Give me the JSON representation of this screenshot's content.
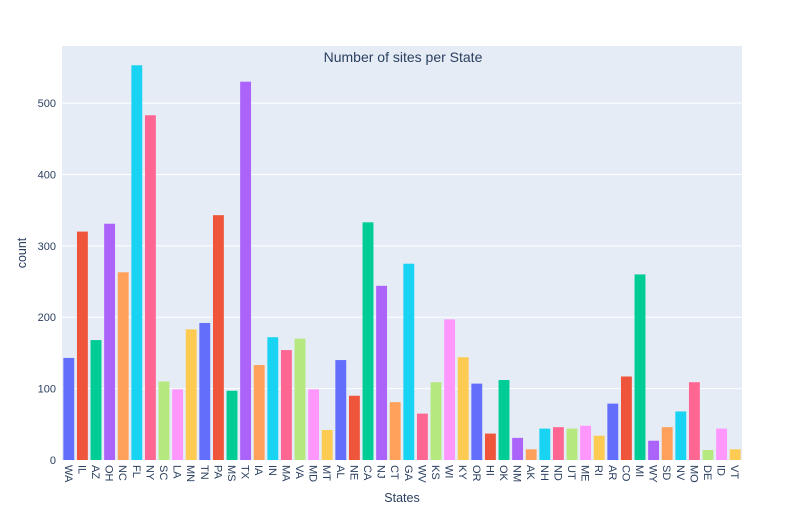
{
  "chart_data": {
    "type": "bar",
    "title": "Number of sites per State",
    "xlabel": "States",
    "ylabel": "count",
    "ylim": [
      0,
      580
    ],
    "yticks": [
      0,
      100,
      200,
      300,
      400,
      500
    ],
    "grid": true,
    "categories": [
      "WA",
      "IL",
      "AZ",
      "OH",
      "NC",
      "FL",
      "NY",
      "SC",
      "LA",
      "MN",
      "TN",
      "PA",
      "MS",
      "TX",
      "IA",
      "IN",
      "MA",
      "VA",
      "MD",
      "MT",
      "AL",
      "NE",
      "CA",
      "NJ",
      "CT",
      "GA",
      "WV",
      "KS",
      "WI",
      "KY",
      "OR",
      "HI",
      "OK",
      "NM",
      "AK",
      "NH",
      "ND",
      "UT",
      "ME",
      "RI",
      "AR",
      "CO",
      "MI",
      "WY",
      "SD",
      "NV",
      "MO",
      "DE",
      "ID",
      "VT"
    ],
    "values": [
      143,
      320,
      168,
      331,
      263,
      553,
      483,
      110,
      99,
      183,
      192,
      343,
      97,
      530,
      133,
      172,
      154,
      170,
      99,
      42,
      140,
      90,
      333,
      244,
      81,
      275,
      65,
      109,
      197,
      144,
      107,
      37,
      112,
      31,
      15,
      44,
      46,
      44,
      48,
      34,
      79,
      117,
      260,
      27,
      46,
      68,
      109,
      14,
      44,
      15
    ],
    "colors": [
      "#636efa",
      "#ef553b",
      "#00cc96",
      "#ab63fa",
      "#ffa15a",
      "#19d3f3",
      "#ff6692",
      "#b6e880",
      "#ff97ff",
      "#fecb52"
    ]
  }
}
